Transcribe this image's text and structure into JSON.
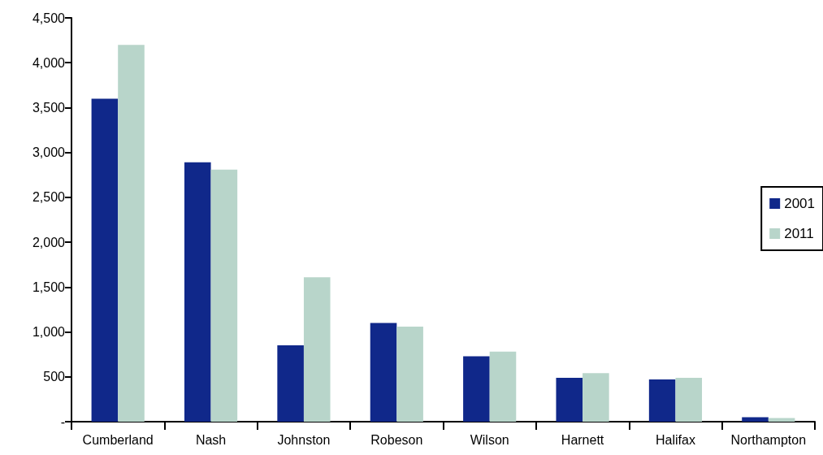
{
  "chart_data": {
    "type": "bar",
    "categories": [
      "Cumberland",
      "Nash",
      "Johnston",
      "Robeson",
      "Wilson",
      "Harnett",
      "Halifax",
      "Northampton"
    ],
    "series": [
      {
        "name": "2001",
        "color": "#10288a",
        "values": [
          3600,
          2890,
          850,
          1100,
          730,
          490,
          470,
          50
        ]
      },
      {
        "name": "2011",
        "color": "#b8d5ca",
        "values": [
          4200,
          2810,
          1610,
          1060,
          780,
          540,
          490,
          40
        ]
      }
    ],
    "ylim": [
      0,
      4500
    ],
    "yticks": [
      {
        "value": 0,
        "label": "-"
      },
      500,
      {
        "value": 1000,
        "label": "1,000"
      },
      {
        "value": 1500,
        "label": "1,500"
      },
      {
        "value": 2000,
        "label": "2,000"
      },
      {
        "value": 2500,
        "label": "2,500"
      },
      {
        "value": 3000,
        "label": "3,000"
      },
      {
        "value": 3500,
        "label": "3,500"
      },
      {
        "value": 4000,
        "label": "4,000"
      },
      {
        "value": 4500,
        "label": "4,500"
      }
    ],
    "grid": false,
    "legend": "right"
  }
}
